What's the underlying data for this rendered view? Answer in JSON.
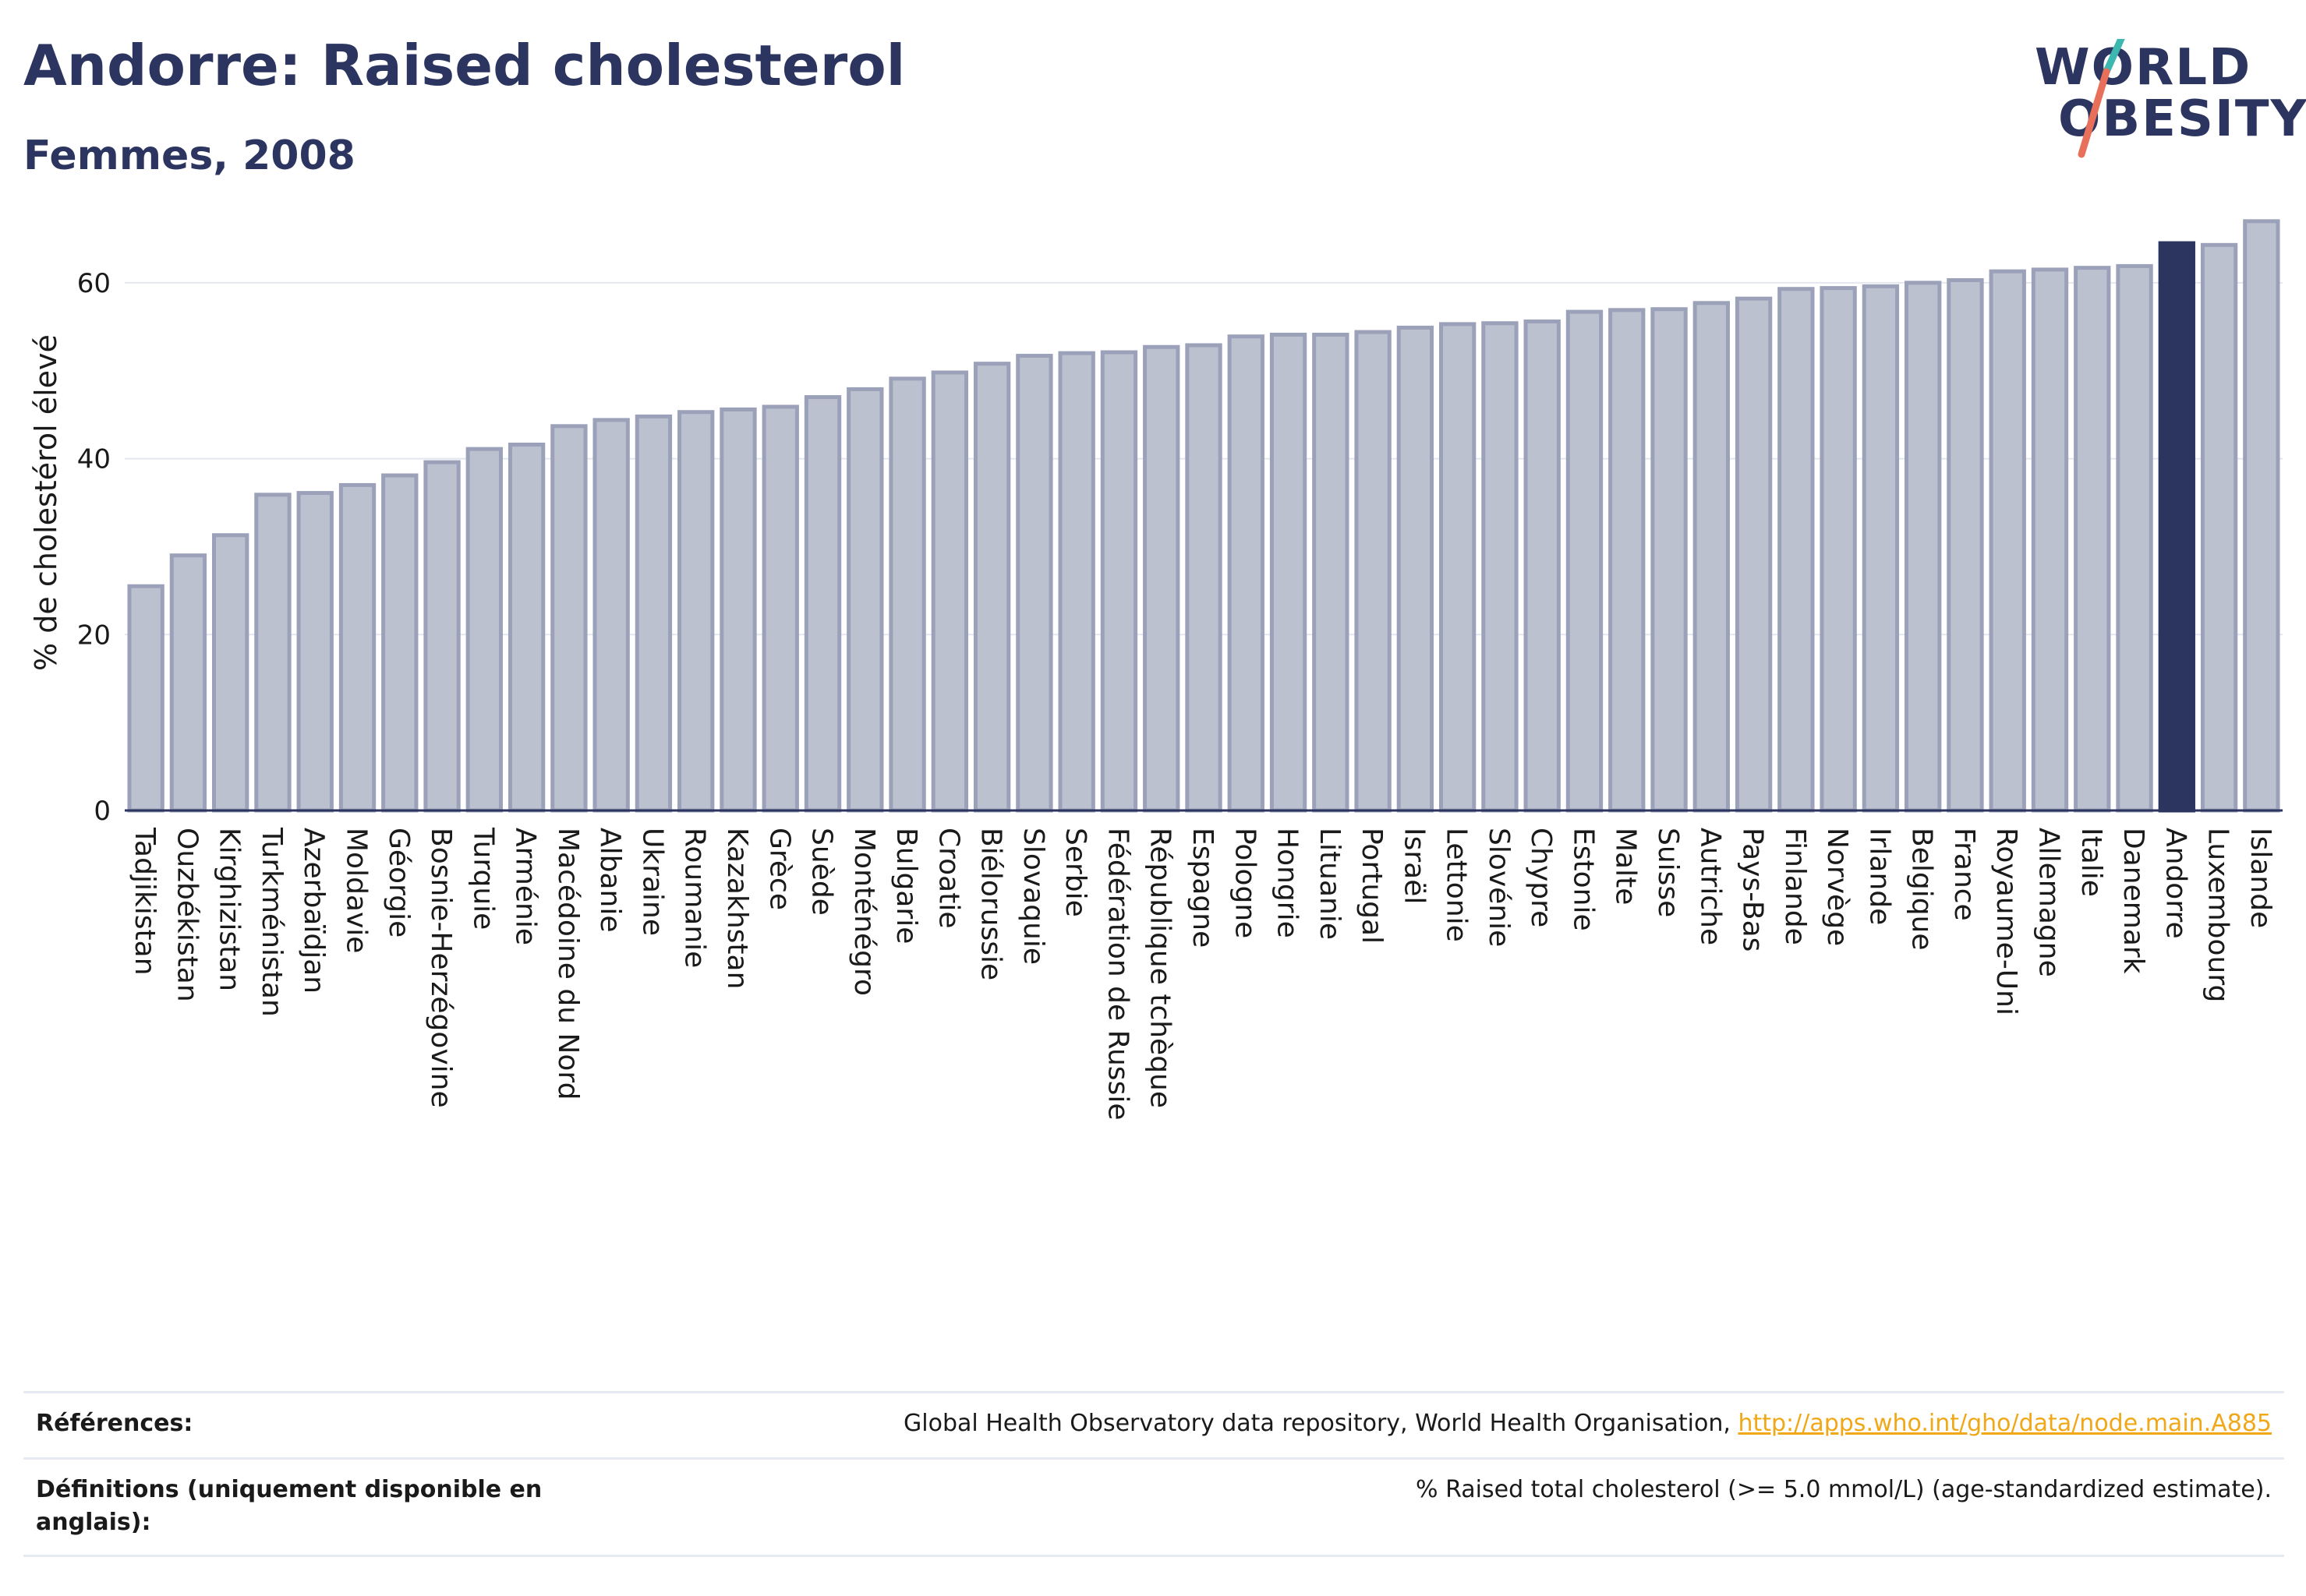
{
  "header": {
    "title": "Andorre: Raised cholesterol",
    "subtitle": "Femmes, 2008"
  },
  "logo": {
    "line1": "WORLD",
    "line2": "OBESITY",
    "slash_colors": [
      "#3cb8b0",
      "#e8705a"
    ]
  },
  "colors": {
    "bar": "#bcc1d0",
    "bar_border": "#9aa1b8",
    "highlight": "#2c3560",
    "text": "#2c3560",
    "link": "#f0a818",
    "grid": "#e4e7f0"
  },
  "chart_data": {
    "type": "bar",
    "ylabel": "% de cholestérol élevé",
    "ylim": [
      0,
      70
    ],
    "yticks": [
      0,
      20,
      40,
      60
    ],
    "highlight": "Andorre",
    "grid": true,
    "categories": [
      "Tadjikistan",
      "Ouzbékistan",
      "Kirghizistan",
      "Turkménistan",
      "Azerbaïdjan",
      "Moldavie",
      "Géorgie",
      "Bosnie-Herzégovine",
      "Turquie",
      "Arménie",
      "Macédoine du Nord",
      "Albanie",
      "Ukraine",
      "Roumanie",
      "Kazakhstan",
      "Grèce",
      "Suède",
      "Monténégro",
      "Bulgarie",
      "Croatie",
      "Biélorussie",
      "Slovaquie",
      "Serbie",
      "Fédération de Russie",
      "République tchèque",
      "Espagne",
      "Pologne",
      "Hongrie",
      "Lituanie",
      "Portugal",
      "Israël",
      "Lettonie",
      "Slovénie",
      "Chypre",
      "Estonie",
      "Malte",
      "Suisse",
      "Autriche",
      "Pays-Bas",
      "Finlande",
      "Norvège",
      "Irlande",
      "Belgique",
      "France",
      "Royaume-Uni",
      "Allemagne",
      "Italie",
      "Danemark",
      "Andorre",
      "Luxembourg",
      "Islande"
    ],
    "values": [
      25.5,
      29.0,
      31.3,
      35.9,
      36.1,
      37.0,
      38.1,
      39.6,
      41.1,
      41.6,
      43.7,
      44.4,
      44.8,
      45.3,
      45.6,
      45.9,
      47.0,
      47.9,
      49.1,
      49.8,
      50.8,
      51.7,
      52.0,
      52.1,
      52.7,
      52.9,
      53.9,
      54.1,
      54.1,
      54.4,
      54.9,
      55.3,
      55.4,
      55.6,
      56.7,
      56.9,
      57.0,
      57.7,
      58.2,
      59.3,
      59.4,
      59.6,
      60.0,
      60.3,
      61.3,
      61.5,
      61.7,
      61.9,
      64.5,
      64.3,
      67.0
    ]
  },
  "references": {
    "label": "Références:",
    "text": "Global Health Observatory data repository, World Health Organisation, ",
    "link": "http://apps.who.int/gho/data/node.main.A885"
  },
  "definitions": {
    "label": "Définitions (uniquement disponible en anglais):",
    "text": "% Raised total cholesterol (>= 5.0 mmol/L) (age-standardized estimate)."
  }
}
